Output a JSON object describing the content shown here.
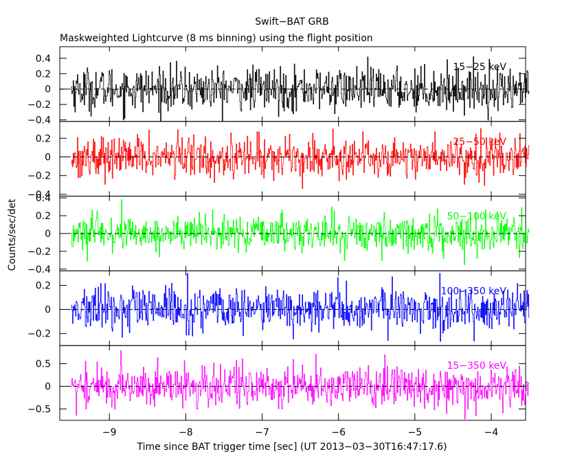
{
  "chart_data": {
    "type": "line",
    "title": "Swift−BAT GRB",
    "subtitle": "Maskweighted Lightcurve (8 ms binning) using the flight position",
    "xlabel": "Time since BAT trigger time [sec] (UT 2013−03−30T16:47:17.6)",
    "ylabel": "Counts/sec/det",
    "xlim": [
      -9.65,
      -3.55
    ],
    "data_range_x": [
      -9.5,
      -3.5
    ],
    "bin_width_sec": 0.008,
    "x_ticks": [
      -9,
      -8,
      -7,
      -6,
      -5,
      -4
    ],
    "x_tick_labels": [
      "−9",
      "−8",
      "−7",
      "−6",
      "−5",
      "−4"
    ],
    "grid": false,
    "reference_line": {
      "y": 0,
      "style": "dashed"
    },
    "panels": [
      {
        "name": "15−25 keV",
        "color": "#000000",
        "ylim": [
          -0.42,
          0.55
        ],
        "y_ticks": [
          -0.4,
          -0.2,
          0,
          0.2,
          0.4
        ],
        "y_tick_labels": [
          "−0.4",
          "−0.2",
          "0",
          "0.2",
          "0.4"
        ],
        "noise_sigma": 0.14,
        "peak_range": [
          -0.42,
          0.52
        ]
      },
      {
        "name": "25−50 keV",
        "color": "#ff0000",
        "ylim": [
          -0.42,
          0.38
        ],
        "y_ticks": [
          -0.4,
          -0.2,
          0,
          0.2
        ],
        "y_tick_labels": [
          "−0.4",
          "−0.2",
          "0",
          "0.2"
        ],
        "noise_sigma": 0.11,
        "peak_range": [
          -0.4,
          0.35
        ]
      },
      {
        "name": "50−100 keV",
        "color": "#00ff00",
        "ylim": [
          -0.42,
          0.42
        ],
        "y_ticks": [
          -0.4,
          -0.2,
          0,
          0.2,
          0.4
        ],
        "y_tick_labels": [
          "−0.4",
          "−0.2",
          "0",
          "0.2",
          "0.4"
        ],
        "noise_sigma": 0.1,
        "peak_range": [
          -0.35,
          0.38
        ]
      },
      {
        "name": "100−350 keV",
        "color": "#0000ff",
        "ylim": [
          -0.3,
          0.32
        ],
        "y_ticks": [
          -0.2,
          0,
          0.2
        ],
        "y_tick_labels": [
          "−0.2",
          "0",
          "0.2"
        ],
        "noise_sigma": 0.09,
        "peak_range": [
          -0.28,
          0.3
        ]
      },
      {
        "name": "15−350 keV",
        "color": "#ff00ff",
        "ylim": [
          -0.75,
          0.9
        ],
        "y_ticks": [
          -0.5,
          0,
          0.5
        ],
        "y_tick_labels": [
          "−0.5",
          "0",
          "0.5"
        ],
        "noise_sigma": 0.23,
        "peak_range": [
          -0.72,
          0.85
        ]
      }
    ]
  }
}
